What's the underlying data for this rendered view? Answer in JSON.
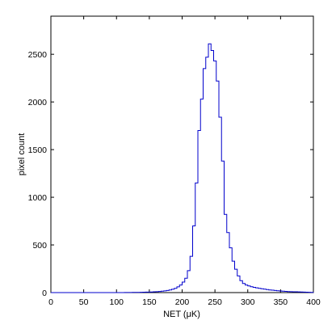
{
  "chart_data": {
    "type": "histogram",
    "xlabel": "NET (μK)",
    "ylabel": "pixel count",
    "xlim": [
      0,
      400
    ],
    "ylim": [
      0,
      2900
    ],
    "xticks": [
      0,
      50,
      100,
      150,
      200,
      250,
      300,
      350,
      400
    ],
    "xtick_labels": [
      "0",
      "50",
      "100",
      "150",
      "200",
      "250",
      "300",
      "350",
      "400"
    ],
    "yticks": [
      0,
      500,
      1000,
      1500,
      2000,
      2500
    ],
    "ytick_labels": [
      "0",
      "500",
      "1000",
      "1500",
      "2000",
      "2500"
    ],
    "grid": false,
    "line_color": "#0000cc",
    "bin_width": 4,
    "bin_start": 0,
    "counts": [
      0,
      0,
      0,
      0,
      0,
      0,
      0,
      0,
      0,
      0,
      0,
      0,
      0,
      0,
      0,
      0,
      0,
      0,
      0,
      0,
      0,
      0,
      0,
      0,
      0,
      0,
      0,
      0,
      1,
      1,
      1,
      2,
      2,
      2,
      3,
      4,
      5,
      5,
      6,
      8,
      10,
      12,
      15,
      18,
      22,
      28,
      35,
      45,
      60,
      80,
      110,
      150,
      230,
      380,
      700,
      1150,
      1700,
      2030,
      2350,
      2470,
      2610,
      2540,
      2430,
      2220,
      1840,
      1380,
      820,
      630,
      470,
      330,
      245,
      175,
      125,
      95,
      80,
      70,
      62,
      55,
      50,
      45,
      40,
      36,
      32,
      28,
      25,
      22,
      19,
      17,
      15,
      13,
      11,
      10,
      9,
      8,
      7,
      6,
      5,
      4,
      3,
      2
    ]
  }
}
